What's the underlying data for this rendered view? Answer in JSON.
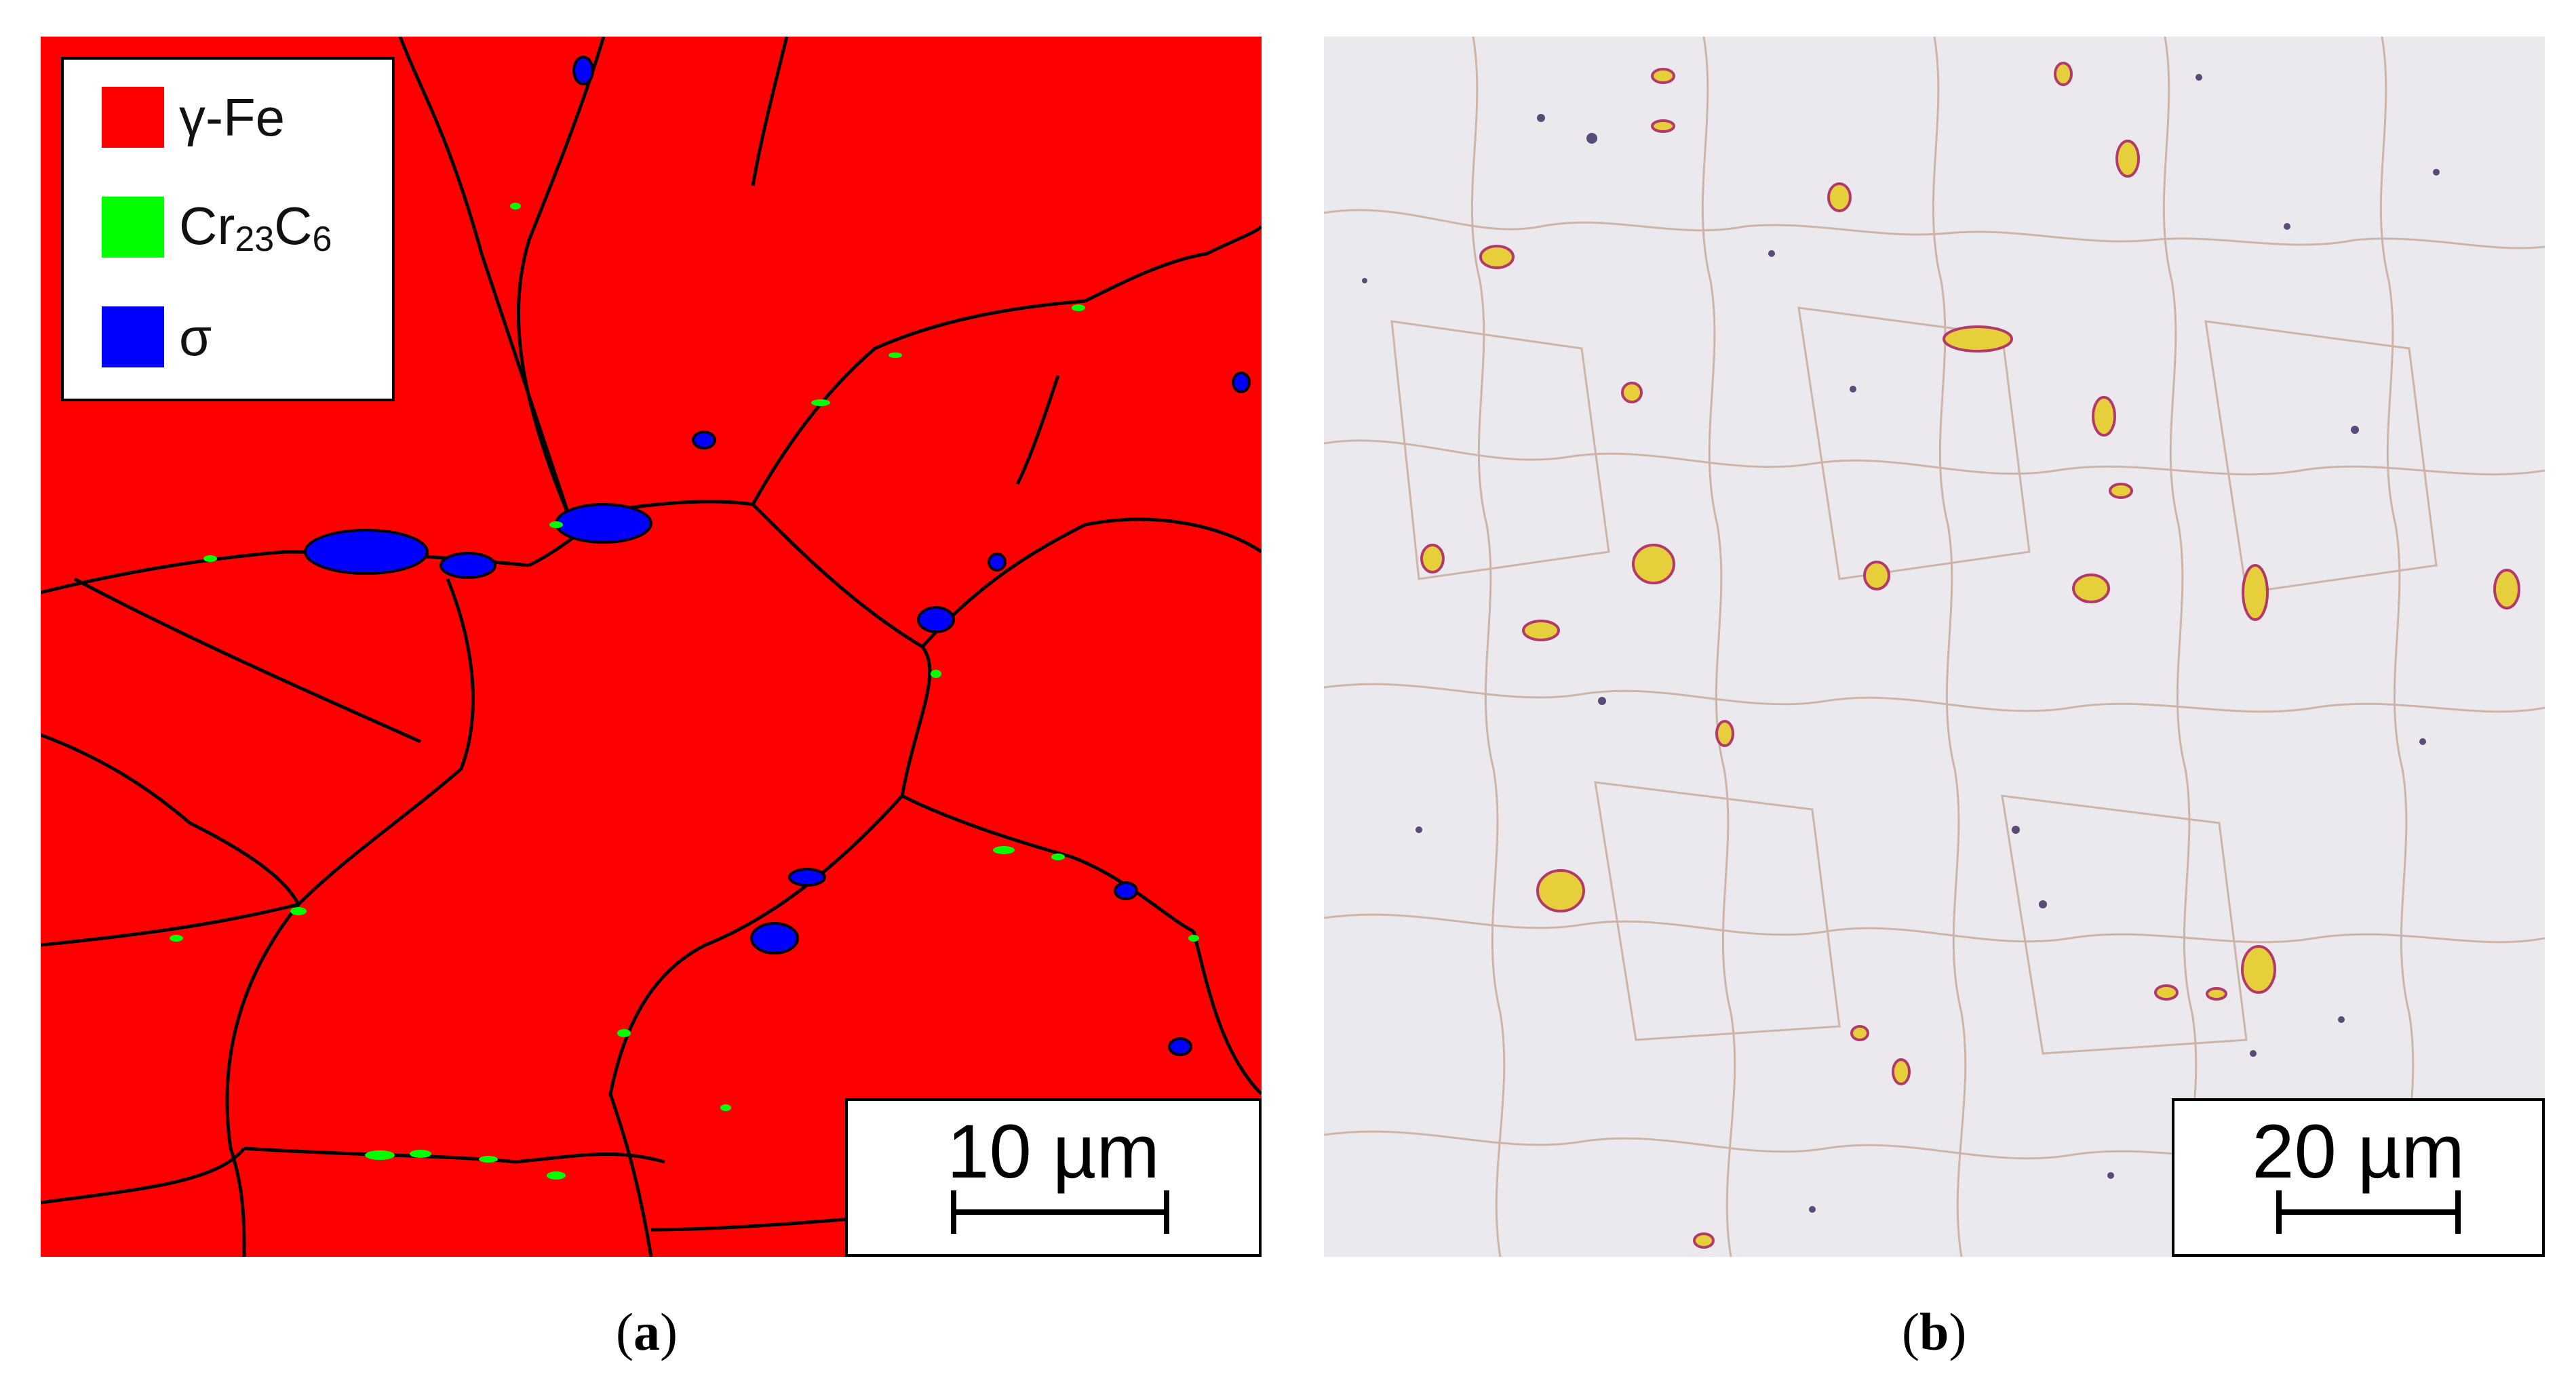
{
  "panels": [
    {
      "id": "a",
      "caption_open": "(",
      "caption_letter": "a",
      "caption_close": ")",
      "legend": [
        {
          "label_main": "γ-Fe",
          "label_sub1": "",
          "label_mid": "",
          "label_sub2": "",
          "color": "#ff0000"
        },
        {
          "label_main": "Cr",
          "label_sub1": "23",
          "label_mid": "C",
          "label_sub2": "6",
          "color": "#00ff00"
        },
        {
          "label_main": "σ",
          "label_sub1": "",
          "label_mid": "",
          "label_sub2": "",
          "color": "#0000ff"
        }
      ],
      "scale_bar": "10 µm",
      "colors": {
        "matrix": "#ff0000",
        "carbide": "#00ff00",
        "sigma": "#0000ff",
        "boundary": "#000000"
      }
    },
    {
      "id": "b",
      "caption_open": "(",
      "caption_letter": "b",
      "caption_close": ")",
      "scale_bar": "20 µm",
      "colors": {
        "background": "#ebe9ee",
        "particle_fill": "#e6cf3a",
        "particle_edge": "#b23a6a",
        "boundary": "#c8a89a"
      }
    }
  ]
}
